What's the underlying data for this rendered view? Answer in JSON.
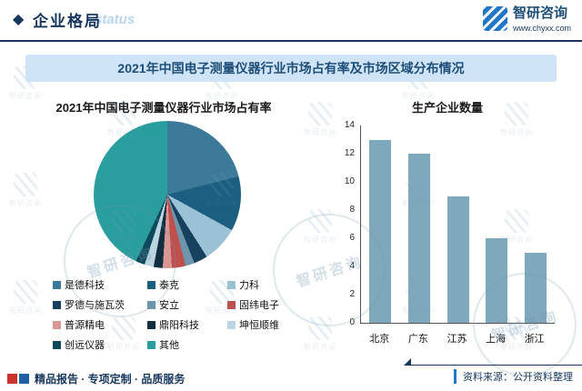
{
  "header": {
    "section_title": "企业格局",
    "status_watermark": "status",
    "brand_name": "智研咨询",
    "brand_site": "www.chyxx.com"
  },
  "banner_title": "2021年中国电子测量仪器行业市场占有率及市场区域分布情况",
  "watermark": {
    "text": "智研咨询"
  },
  "chart_data": [
    {
      "type": "pie",
      "title": "2021年中国电子测量仪器行业市场占有率",
      "legend_position": "bottom",
      "series": [
        {
          "name": "是德科技",
          "value": 21,
          "color": "#3d7a99"
        },
        {
          "name": "泰克",
          "value": 12,
          "color": "#1b5e80"
        },
        {
          "name": "力科",
          "value": 8,
          "color": "#9cc3d5"
        },
        {
          "name": "罗德与施瓦茨",
          "value": 3,
          "color": "#17425f"
        },
        {
          "name": "安立",
          "value": 2,
          "color": "#6d95ab"
        },
        {
          "name": "固纬电子",
          "value": 3,
          "color": "#c0504d"
        },
        {
          "name": "普源精电",
          "value": 2,
          "color": "#d99694"
        },
        {
          "name": "鼎阳科技",
          "value": 2,
          "color": "#122f40"
        },
        {
          "name": "坤恒顺维",
          "value": 2,
          "color": "#bcd5e3"
        },
        {
          "name": "创远仪器",
          "value": 2,
          "color": "#0e4a5c"
        },
        {
          "name": "其他",
          "value": 43,
          "color": "#2a9d9e"
        }
      ]
    },
    {
      "type": "bar",
      "title": "生产企业数量",
      "categories": [
        "北京",
        "广东",
        "江苏",
        "上海",
        "浙江"
      ],
      "values": [
        13,
        12,
        9,
        6,
        5
      ],
      "ylim": [
        0,
        14
      ],
      "yticks": [
        0,
        2,
        4,
        6,
        8,
        10,
        12,
        14
      ],
      "bar_color": "#7fa8bc",
      "grid": false
    }
  ],
  "footer": {
    "services": "精品报告 · 专项定制 · 品质服务",
    "source": "资料来源：公开资料整理"
  }
}
